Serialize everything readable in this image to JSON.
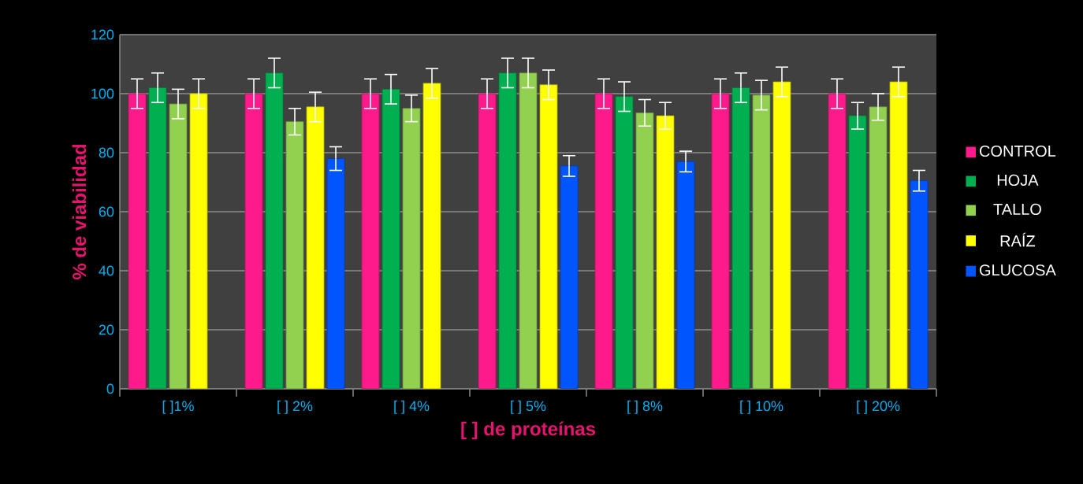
{
  "chart_data": {
    "type": "bar",
    "xlabel": "[ ] de proteínas",
    "ylabel": "% de viabilidad",
    "categories": [
      "[ ]1%",
      "[ ] 2%",
      "[ ] 4%",
      "[ ] 5%",
      "[ ] 8%",
      "[ ] 10%",
      "[ ] 20%"
    ],
    "series": [
      {
        "name": "CONTROL",
        "color": "#ff1a8c",
        "values": [
          100,
          100,
          100,
          100,
          100,
          100,
          100
        ],
        "errors": [
          5,
          5,
          5,
          5,
          5,
          5,
          5
        ]
      },
      {
        "name": "HOJA",
        "color": "#00b050",
        "values": [
          102,
          107,
          101.5,
          107,
          99,
          102,
          92.5
        ],
        "errors": [
          5,
          5,
          5,
          5,
          5,
          5,
          4.5
        ]
      },
      {
        "name": "TALLO",
        "color": "#92d050",
        "values": [
          96.5,
          90.5,
          95,
          107,
          93.5,
          99.5,
          95.5
        ],
        "errors": [
          5,
          4.5,
          4.5,
          5,
          4.5,
          5,
          4.5
        ]
      },
      {
        "name": "RAÍZ",
        "color": "#ffff00",
        "values": [
          100,
          95.5,
          103.5,
          103,
          92.5,
          104,
          104
        ],
        "errors": [
          5,
          5,
          5,
          5,
          4.5,
          5,
          5
        ]
      },
      {
        "name": "GLUCOSA",
        "color": "#0055ff",
        "values": [
          null,
          78,
          null,
          75.5,
          77,
          null,
          70.5
        ],
        "errors": [
          null,
          4,
          null,
          3.5,
          3.5,
          null,
          3.5
        ]
      }
    ],
    "ylim": [
      0,
      120
    ],
    "yticks": [
      0,
      20,
      40,
      60,
      80,
      100,
      120
    ],
    "grid": "y",
    "legend": "right"
  }
}
